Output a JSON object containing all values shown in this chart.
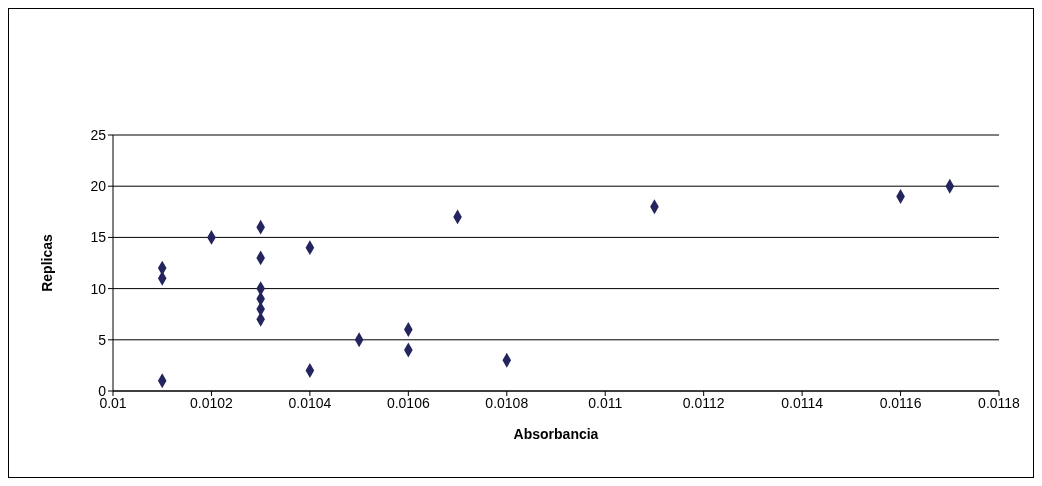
{
  "chart_data": {
    "type": "scatter",
    "xlabel": "Absorbancia",
    "ylabel": "Replicas",
    "x": [
      0.0101,
      0.0104,
      0.0108,
      0.0106,
      0.0105,
      0.0106,
      0.0103,
      0.0103,
      0.0103,
      0.0103,
      0.0101,
      0.0101,
      0.0103,
      0.0104,
      0.0102,
      0.0103,
      0.0107,
      0.0111,
      0.0116,
      0.0117
    ],
    "series": [
      {
        "color": "#24245e",
        "values": [
          1,
          2,
          3,
          4,
          5,
          6,
          7,
          8,
          9,
          10,
          11,
          12,
          13,
          14,
          15,
          16,
          17,
          18,
          19,
          20
        ]
      }
    ],
    "xlim": [
      0.01,
      0.0118
    ],
    "xticks": [
      0.01,
      0.0102,
      0.0104,
      0.0106,
      0.0108,
      0.011,
      0.0112,
      0.0114,
      0.0116,
      0.0118
    ],
    "ylim": [
      0,
      25
    ],
    "yticks": [
      0,
      5,
      10,
      15,
      20,
      25
    ],
    "grid": "y",
    "marker": "diamond"
  }
}
